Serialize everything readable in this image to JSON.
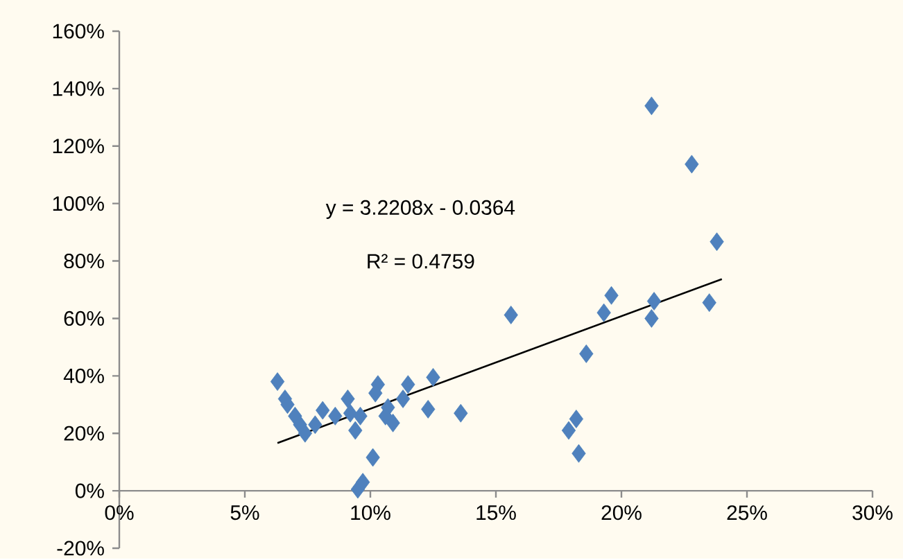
{
  "chart_data": {
    "type": "scatter",
    "xlim": [
      0,
      30
    ],
    "ylim": [
      -20,
      160
    ],
    "xticks": [
      {
        "value": 0,
        "label": "0%"
      },
      {
        "value": 5,
        "label": "5%"
      },
      {
        "value": 10,
        "label": "10%"
      },
      {
        "value": 15,
        "label": "15%"
      },
      {
        "value": 20,
        "label": "20%"
      },
      {
        "value": 25,
        "label": "25%"
      },
      {
        "value": 30,
        "label": "30%"
      }
    ],
    "yticks": [
      {
        "value": -20,
        "label": "-20%"
      },
      {
        "value": 0,
        "label": "0%"
      },
      {
        "value": 20,
        "label": "20%"
      },
      {
        "value": 40,
        "label": "40%"
      },
      {
        "value": 60,
        "label": "60%"
      },
      {
        "value": 80,
        "label": "80%"
      },
      {
        "value": 100,
        "label": "100%"
      },
      {
        "value": 120,
        "label": "120%"
      },
      {
        "value": 140,
        "label": "140%"
      },
      {
        "value": 160,
        "label": "160%"
      }
    ],
    "grid": false,
    "annotations": [
      "y = 3.2208x - 0.0364",
      "R² = 0.4759"
    ],
    "series": [
      {
        "marker": "diamond",
        "color": "#4f81bd",
        "x": [
          6.3,
          6.6,
          6.7,
          7.0,
          7.4,
          7.2,
          7.8,
          8.1,
          8.6,
          9.1,
          9.2,
          9.4,
          9.6,
          10.1,
          9.5,
          9.7,
          10.3,
          10.2,
          10.7,
          10.9,
          11.5,
          11.3,
          12.5,
          12.3,
          13.6,
          10.6,
          15.6,
          18.6,
          19.6,
          19.3,
          21.3,
          21.2,
          23.5,
          18.2,
          17.9,
          18.3,
          21.2,
          22.8,
          23.8
        ],
        "values": [
          38,
          32,
          30,
          26,
          20,
          23,
          23,
          28,
          26,
          32,
          27,
          21,
          26,
          11.6,
          0.5,
          3,
          37,
          34,
          29,
          23.6,
          37,
          32,
          39.5,
          28.4,
          27,
          26,
          61.2,
          47.7,
          68,
          62,
          66,
          60,
          65.5,
          25,
          21,
          13,
          134,
          113.7,
          86.7
        ]
      },
      {
        "type": "line",
        "marker": "none",
        "color": "#000000",
        "x": [
          6.3,
          24
        ],
        "values": [
          16.6,
          73.7
        ]
      }
    ]
  }
}
